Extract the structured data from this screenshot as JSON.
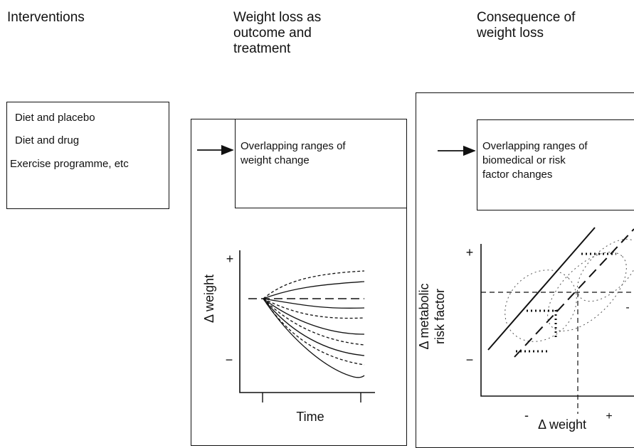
{
  "headers": {
    "interventions": "Interventions",
    "weight_loss": "Weight loss as\noutcome and\ntreatment",
    "consequence": "Consequence of\nweight loss"
  },
  "interventions": {
    "items": [
      "Diet and placebo",
      "Diet and drug",
      "Exercise programme, etc"
    ]
  },
  "middle": {
    "box_text": "Overlapping ranges of\nweight change",
    "y_label": "Δ weight",
    "x_label": "Time",
    "plus": "+",
    "minus": "−"
  },
  "right": {
    "box_text": "Overlapping ranges of\nbiomedical or risk\nfactor changes",
    "y_label_line1": "Δ metabolic",
    "y_label_line2": "risk factor",
    "x_label": "Δ weight",
    "plus": "+",
    "minus": "−",
    "x_minus": "-",
    "x_plus": "+",
    "right_minus": "-"
  }
}
